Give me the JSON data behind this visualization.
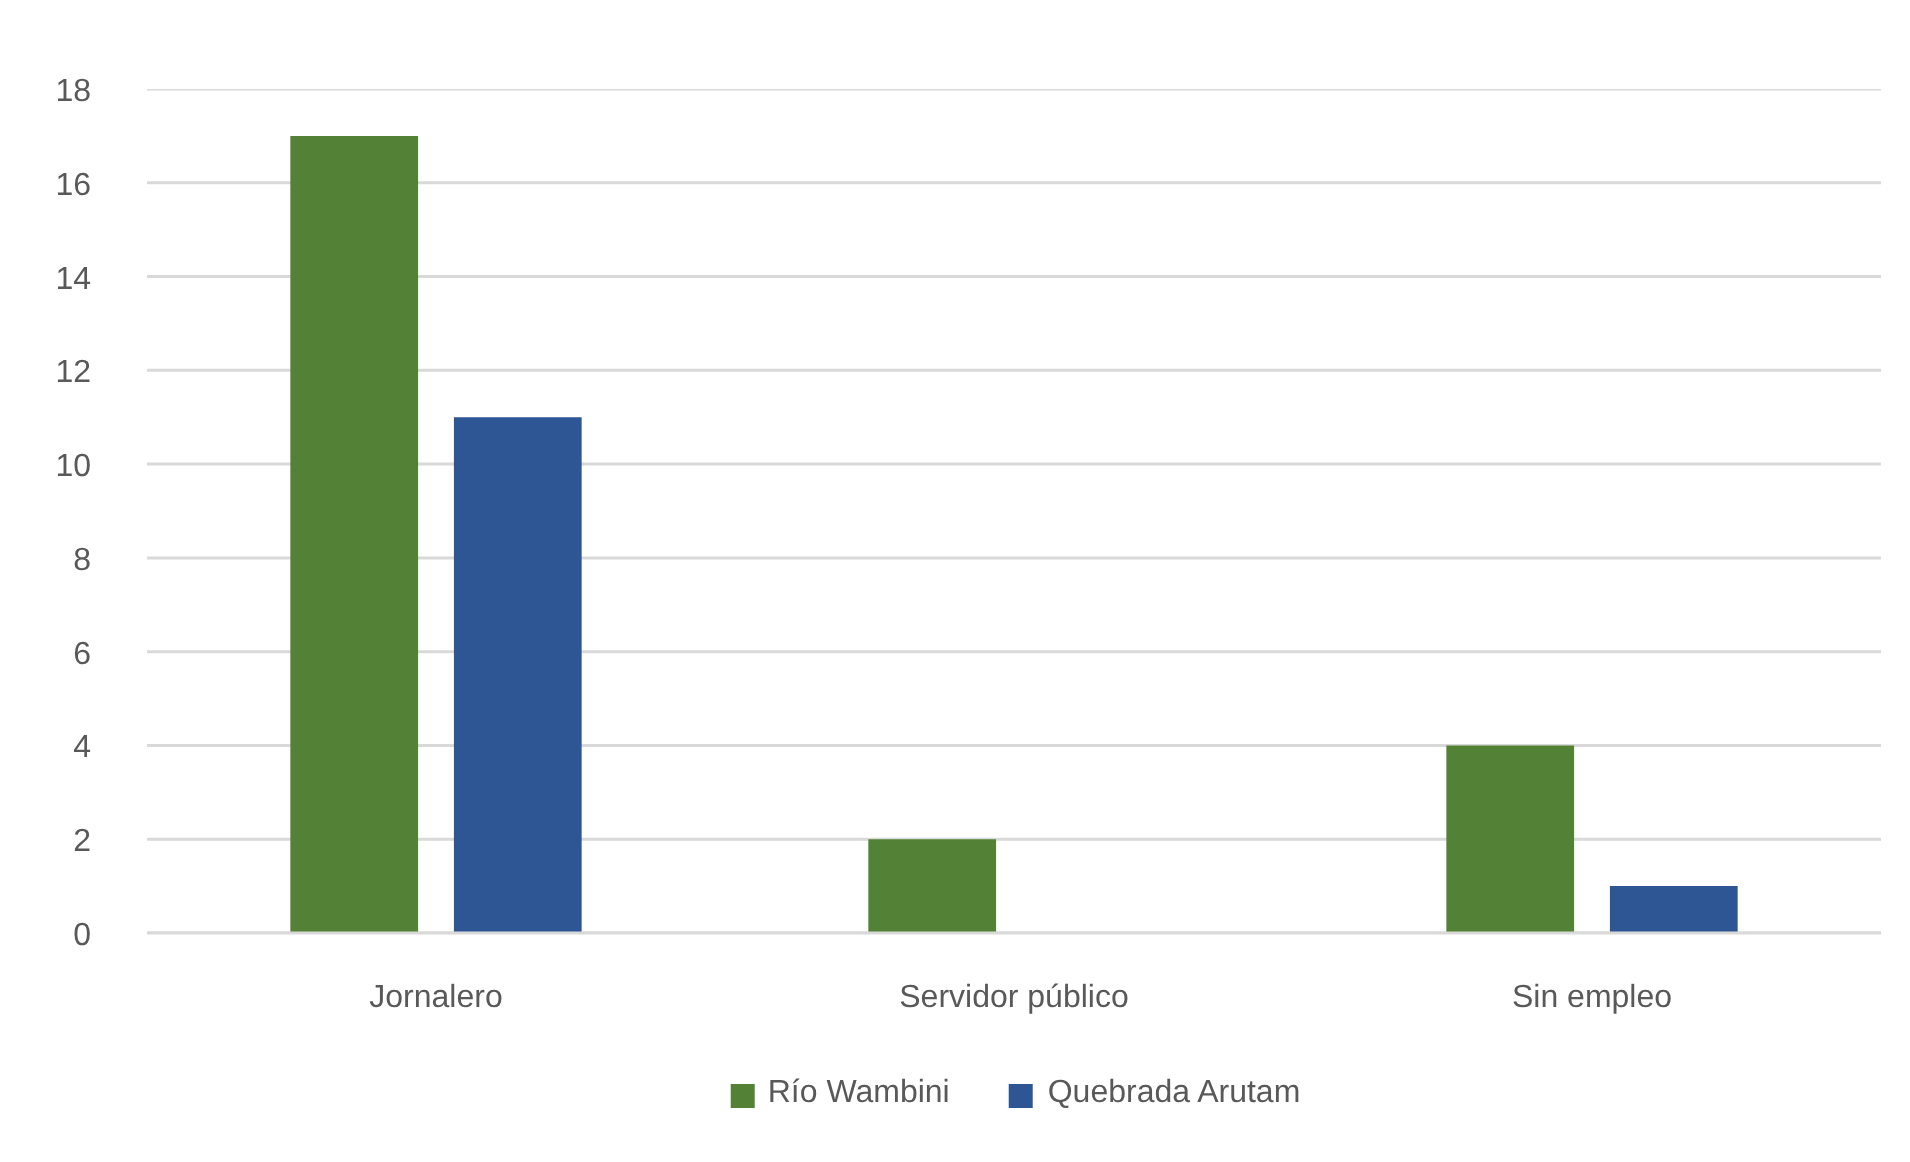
{
  "chart_data": {
    "type": "bar",
    "categories": [
      "Jornalero",
      "Servidor público",
      "Sin empleo"
    ],
    "series": [
      {
        "name": "Río Wambini",
        "color": "#538135",
        "values": [
          17,
          2,
          4
        ]
      },
      {
        "name": "Quebrada Arutam",
        "color": "#2e5594",
        "values": [
          11,
          0,
          1
        ]
      }
    ],
    "ylim": [
      0,
      18
    ],
    "yticks": [
      0,
      2,
      4,
      6,
      8,
      10,
      12,
      14,
      16,
      18
    ],
    "grid": "y",
    "legend": "bottom"
  }
}
